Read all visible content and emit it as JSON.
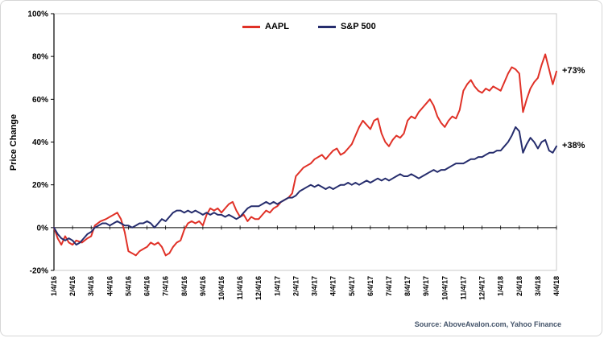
{
  "chart_data": {
    "type": "line",
    "title": "",
    "xlabel": "",
    "ylabel": "Price Change",
    "ylim": [
      -20,
      100
    ],
    "grid": false,
    "legend_position": "top-center",
    "source": "Source: AboveAvalon.com, Yahoo Finance",
    "y_ticks": [
      {
        "v": -20,
        "label": "-20%"
      },
      {
        "v": 0,
        "label": "0%"
      },
      {
        "v": 20,
        "label": "20%"
      },
      {
        "v": 40,
        "label": "40%"
      },
      {
        "v": 60,
        "label": "60%"
      },
      {
        "v": 80,
        "label": "80%"
      },
      {
        "v": 100,
        "label": "100%"
      }
    ],
    "x_labels": [
      "1/4/16",
      "2/4/16",
      "3/4/16",
      "4/4/16",
      "5/4/16",
      "6/4/16",
      "7/4/16",
      "8/4/16",
      "9/4/16",
      "10/4/16",
      "11/4/16",
      "12/4/16",
      "1/4/17",
      "2/4/17",
      "3/4/17",
      "4/4/17",
      "5/4/17",
      "6/4/17",
      "7/4/17",
      "8/4/17",
      "9/4/17",
      "10/4/17",
      "11/4/17",
      "12/4/17",
      "1/4/18",
      "2/4/18",
      "3/4/18",
      "4/4/18"
    ],
    "series": [
      {
        "name": "AAPL",
        "color": "#e03127",
        "end_label": "+73%",
        "final_value": 73,
        "points": [
          [
            0,
            0
          ],
          [
            0.2,
            -5
          ],
          [
            0.4,
            -8
          ],
          [
            0.6,
            -4
          ],
          [
            0.8,
            -7
          ],
          [
            1,
            -8
          ],
          [
            1.2,
            -6
          ],
          [
            1.5,
            -7
          ],
          [
            1.8,
            -5
          ],
          [
            2,
            -4
          ],
          [
            2.2,
            1
          ],
          [
            2.5,
            3
          ],
          [
            2.8,
            4
          ],
          [
            3,
            5
          ],
          [
            3.2,
            6
          ],
          [
            3.4,
            7
          ],
          [
            3.6,
            4
          ],
          [
            3.8,
            -2
          ],
          [
            4,
            -11
          ],
          [
            4.2,
            -12
          ],
          [
            4.4,
            -13
          ],
          [
            4.6,
            -11
          ],
          [
            4.8,
            -10
          ],
          [
            5,
            -9
          ],
          [
            5.2,
            -7
          ],
          [
            5.4,
            -8
          ],
          [
            5.6,
            -7
          ],
          [
            5.8,
            -9
          ],
          [
            6,
            -13
          ],
          [
            6.2,
            -12
          ],
          [
            6.4,
            -9
          ],
          [
            6.6,
            -7
          ],
          [
            6.8,
            -6
          ],
          [
            7,
            -1
          ],
          [
            7.2,
            2
          ],
          [
            7.4,
            3
          ],
          [
            7.6,
            2
          ],
          [
            7.8,
            3
          ],
          [
            8,
            1
          ],
          [
            8.2,
            6
          ],
          [
            8.4,
            9
          ],
          [
            8.6,
            8
          ],
          [
            8.8,
            9
          ],
          [
            9,
            7
          ],
          [
            9.2,
            9
          ],
          [
            9.4,
            11
          ],
          [
            9.6,
            12
          ],
          [
            9.8,
            8
          ],
          [
            10,
            5
          ],
          [
            10.2,
            6
          ],
          [
            10.4,
            3
          ],
          [
            10.6,
            5
          ],
          [
            10.8,
            4
          ],
          [
            11,
            4
          ],
          [
            11.2,
            6
          ],
          [
            11.4,
            8
          ],
          [
            11.6,
            7
          ],
          [
            11.8,
            9
          ],
          [
            12,
            10
          ],
          [
            12.2,
            12
          ],
          [
            12.4,
            13
          ],
          [
            12.6,
            14
          ],
          [
            12.8,
            16
          ],
          [
            13,
            24
          ],
          [
            13.2,
            26
          ],
          [
            13.4,
            28
          ],
          [
            13.6,
            29
          ],
          [
            13.8,
            30
          ],
          [
            14,
            32
          ],
          [
            14.2,
            33
          ],
          [
            14.4,
            34
          ],
          [
            14.6,
            32
          ],
          [
            14.8,
            34
          ],
          [
            15,
            36
          ],
          [
            15.2,
            37
          ],
          [
            15.4,
            34
          ],
          [
            15.6,
            35
          ],
          [
            15.8,
            37
          ],
          [
            16,
            39
          ],
          [
            16.2,
            43
          ],
          [
            16.4,
            47
          ],
          [
            16.6,
            50
          ],
          [
            16.8,
            48
          ],
          [
            17,
            46
          ],
          [
            17.2,
            50
          ],
          [
            17.4,
            51
          ],
          [
            17.6,
            44
          ],
          [
            17.8,
            40
          ],
          [
            18,
            38
          ],
          [
            18.2,
            41
          ],
          [
            18.4,
            43
          ],
          [
            18.6,
            42
          ],
          [
            18.8,
            44
          ],
          [
            19,
            50
          ],
          [
            19.2,
            52
          ],
          [
            19.4,
            51
          ],
          [
            19.6,
            54
          ],
          [
            19.8,
            56
          ],
          [
            20,
            58
          ],
          [
            20.2,
            60
          ],
          [
            20.4,
            57
          ],
          [
            20.6,
            52
          ],
          [
            20.8,
            49
          ],
          [
            21,
            47
          ],
          [
            21.2,
            50
          ],
          [
            21.4,
            52
          ],
          [
            21.6,
            51
          ],
          [
            21.8,
            55
          ],
          [
            22,
            64
          ],
          [
            22.2,
            67
          ],
          [
            22.4,
            69
          ],
          [
            22.6,
            66
          ],
          [
            22.8,
            64
          ],
          [
            23,
            63
          ],
          [
            23.2,
            65
          ],
          [
            23.4,
            64
          ],
          [
            23.6,
            66
          ],
          [
            23.8,
            65
          ],
          [
            24,
            64
          ],
          [
            24.2,
            68
          ],
          [
            24.4,
            72
          ],
          [
            24.6,
            75
          ],
          [
            24.8,
            74
          ],
          [
            25,
            72
          ],
          [
            25.1,
            63
          ],
          [
            25.2,
            54
          ],
          [
            25.4,
            60
          ],
          [
            25.6,
            65
          ],
          [
            25.8,
            68
          ],
          [
            26,
            70
          ],
          [
            26.2,
            76
          ],
          [
            26.4,
            81
          ],
          [
            26.6,
            74
          ],
          [
            26.8,
            67
          ],
          [
            27,
            73
          ]
        ]
      },
      {
        "name": "S&P 500",
        "color": "#262d6d",
        "end_label": "+38%",
        "final_value": 38,
        "points": [
          [
            0,
            0
          ],
          [
            0.2,
            -3
          ],
          [
            0.4,
            -5
          ],
          [
            0.6,
            -6
          ],
          [
            0.8,
            -5
          ],
          [
            1,
            -6
          ],
          [
            1.2,
            -8
          ],
          [
            1.4,
            -7
          ],
          [
            1.6,
            -5
          ],
          [
            1.8,
            -3
          ],
          [
            2,
            -2
          ],
          [
            2.2,
            0
          ],
          [
            2.4,
            1
          ],
          [
            2.6,
            2
          ],
          [
            2.8,
            2
          ],
          [
            3,
            1
          ],
          [
            3.2,
            2
          ],
          [
            3.4,
            3
          ],
          [
            3.6,
            2
          ],
          [
            3.8,
            1
          ],
          [
            4,
            1
          ],
          [
            4.2,
            0
          ],
          [
            4.4,
            1
          ],
          [
            4.6,
            2
          ],
          [
            4.8,
            2
          ],
          [
            5,
            3
          ],
          [
            5.2,
            2
          ],
          [
            5.4,
            0
          ],
          [
            5.6,
            2
          ],
          [
            5.8,
            4
          ],
          [
            6,
            3
          ],
          [
            6.2,
            5
          ],
          [
            6.4,
            7
          ],
          [
            6.6,
            8
          ],
          [
            6.8,
            8
          ],
          [
            7,
            7
          ],
          [
            7.2,
            8
          ],
          [
            7.4,
            7
          ],
          [
            7.6,
            8
          ],
          [
            7.8,
            7
          ],
          [
            8,
            6
          ],
          [
            8.2,
            7
          ],
          [
            8.4,
            6
          ],
          [
            8.6,
            7
          ],
          [
            8.8,
            6
          ],
          [
            9,
            6
          ],
          [
            9.2,
            5
          ],
          [
            9.4,
            6
          ],
          [
            9.6,
            5
          ],
          [
            9.8,
            4
          ],
          [
            10,
            5
          ],
          [
            10.2,
            7
          ],
          [
            10.4,
            9
          ],
          [
            10.6,
            10
          ],
          [
            10.8,
            10
          ],
          [
            11,
            10
          ],
          [
            11.2,
            11
          ],
          [
            11.4,
            12
          ],
          [
            11.6,
            11
          ],
          [
            11.8,
            12
          ],
          [
            12,
            11
          ],
          [
            12.2,
            12
          ],
          [
            12.4,
            13
          ],
          [
            12.6,
            14
          ],
          [
            12.8,
            14
          ],
          [
            13,
            15
          ],
          [
            13.2,
            17
          ],
          [
            13.4,
            18
          ],
          [
            13.6,
            19
          ],
          [
            13.8,
            20
          ],
          [
            14,
            19
          ],
          [
            14.2,
            20
          ],
          [
            14.4,
            19
          ],
          [
            14.6,
            18
          ],
          [
            14.8,
            19
          ],
          [
            15,
            18
          ],
          [
            15.2,
            19
          ],
          [
            15.4,
            20
          ],
          [
            15.6,
            20
          ],
          [
            15.8,
            21
          ],
          [
            16,
            20
          ],
          [
            16.2,
            21
          ],
          [
            16.4,
            20
          ],
          [
            16.6,
            21
          ],
          [
            16.8,
            22
          ],
          [
            17,
            21
          ],
          [
            17.2,
            22
          ],
          [
            17.4,
            23
          ],
          [
            17.6,
            22
          ],
          [
            17.8,
            23
          ],
          [
            18,
            22
          ],
          [
            18.2,
            23
          ],
          [
            18.4,
            24
          ],
          [
            18.6,
            25
          ],
          [
            18.8,
            24
          ],
          [
            19,
            24
          ],
          [
            19.2,
            25
          ],
          [
            19.4,
            24
          ],
          [
            19.6,
            23
          ],
          [
            19.8,
            24
          ],
          [
            20,
            25
          ],
          [
            20.2,
            26
          ],
          [
            20.4,
            27
          ],
          [
            20.6,
            26
          ],
          [
            20.8,
            27
          ],
          [
            21,
            27
          ],
          [
            21.2,
            28
          ],
          [
            21.4,
            29
          ],
          [
            21.6,
            30
          ],
          [
            21.8,
            30
          ],
          [
            22,
            30
          ],
          [
            22.2,
            31
          ],
          [
            22.4,
            32
          ],
          [
            22.6,
            32
          ],
          [
            22.8,
            33
          ],
          [
            23,
            33
          ],
          [
            23.2,
            34
          ],
          [
            23.4,
            35
          ],
          [
            23.6,
            35
          ],
          [
            23.8,
            36
          ],
          [
            24,
            36
          ],
          [
            24.2,
            38
          ],
          [
            24.4,
            40
          ],
          [
            24.6,
            43
          ],
          [
            24.8,
            47
          ],
          [
            25,
            45
          ],
          [
            25.1,
            40
          ],
          [
            25.2,
            35
          ],
          [
            25.4,
            39
          ],
          [
            25.6,
            42
          ],
          [
            25.8,
            40
          ],
          [
            26,
            37
          ],
          [
            26.2,
            40
          ],
          [
            26.4,
            41
          ],
          [
            26.6,
            36
          ],
          [
            26.8,
            35
          ],
          [
            27,
            38
          ]
        ]
      }
    ]
  }
}
